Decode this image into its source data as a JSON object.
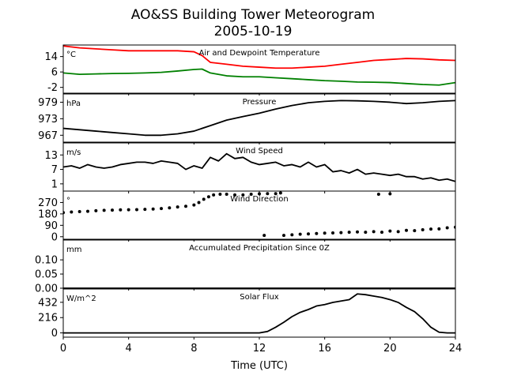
{
  "figure": {
    "title": "AO&SS Building Tower Meteorogram",
    "subtitle": "2005-10-19",
    "xlabel": "Time (UTC)"
  },
  "chart_data": [
    {
      "type": "line",
      "id": "temperature",
      "title": "Air and Dewpoint Temperature",
      "unit": "°C",
      "xlim": [
        0,
        24
      ],
      "ylim": [
        -5,
        20
      ],
      "yticks": [
        -2,
        6,
        14
      ],
      "series": [
        {
          "color": "#ff0000",
          "x": [
            0,
            1,
            2,
            3,
            4,
            5,
            6,
            7,
            8,
            8.5,
            9,
            10,
            11,
            12,
            13,
            14,
            15,
            16,
            17,
            18,
            19,
            20,
            21,
            22,
            23,
            24
          ],
          "y": [
            19.5,
            18.5,
            18,
            17.5,
            17,
            17,
            17,
            17,
            16.5,
            14.5,
            11,
            10,
            9,
            8.5,
            8,
            8,
            8.5,
            9,
            10,
            11,
            12,
            12.5,
            13,
            12.8,
            12.3,
            12
          ]
        },
        {
          "color": "#008000",
          "x": [
            0,
            1,
            2,
            3,
            4,
            5,
            6,
            7,
            8,
            8.5,
            9,
            10,
            11,
            12,
            13,
            14,
            15,
            16,
            17,
            18,
            19,
            20,
            21,
            22,
            23,
            24
          ],
          "y": [
            5.5,
            4.8,
            5,
            5.2,
            5.3,
            5.5,
            5.8,
            6.5,
            7.3,
            7.5,
            5.5,
            4,
            3.5,
            3.5,
            3,
            2.5,
            2,
            1.5,
            1.2,
            0.8,
            0.7,
            0.5,
            0,
            -0.5,
            -0.8,
            0.5
          ]
        }
      ]
    },
    {
      "type": "line",
      "id": "pressure",
      "title": "Pressure",
      "unit": "hPa",
      "xlim": [
        0,
        24
      ],
      "ylim": [
        964.5,
        982
      ],
      "yticks": [
        967,
        973,
        979
      ],
      "series": [
        {
          "color": "#000000",
          "x": [
            0,
            1,
            2,
            3,
            4,
            5,
            6,
            7,
            8,
            9,
            10,
            11,
            12,
            13,
            14,
            15,
            16,
            17,
            18,
            19,
            20,
            21,
            22,
            23,
            24
          ],
          "y": [
            969.5,
            969,
            968.5,
            968,
            967.5,
            967,
            967,
            967.5,
            968.5,
            970.5,
            972.5,
            973.8,
            975,
            976.5,
            977.8,
            978.8,
            979.3,
            979.6,
            979.5,
            979.3,
            979,
            978.5,
            978.8,
            979.3,
            979.6
          ]
        }
      ]
    },
    {
      "type": "line",
      "id": "wind_speed",
      "title": "Wind Speed",
      "unit": "m/s",
      "xlim": [
        0,
        24
      ],
      "ylim": [
        -2,
        18
      ],
      "yticks": [
        1,
        7,
        13
      ],
      "series": [
        {
          "color": "#000000",
          "x": [
            0,
            0.5,
            1,
            1.5,
            2,
            2.5,
            3,
            3.5,
            4,
            4.5,
            5,
            5.5,
            6,
            6.5,
            7,
            7.5,
            8,
            8.5,
            9,
            9.5,
            10,
            10.5,
            11,
            11.5,
            12,
            12.5,
            13,
            13.5,
            14,
            14.5,
            15,
            15.5,
            16,
            16.5,
            17,
            17.5,
            18,
            18.5,
            19,
            19.5,
            20,
            20.5,
            21,
            21.5,
            22,
            22.5,
            23,
            23.5,
            24
          ],
          "y": [
            8,
            8.5,
            7.5,
            9,
            8,
            7.5,
            8,
            9,
            9.5,
            10,
            10,
            9.5,
            10.5,
            10,
            9.5,
            7,
            8.5,
            7.5,
            12,
            10.5,
            13.5,
            11.5,
            12,
            10,
            9,
            9.5,
            10,
            8.5,
            9,
            8,
            10,
            8,
            9,
            6,
            6.5,
            5.5,
            7,
            5,
            5.5,
            5,
            4.5,
            5,
            4,
            4,
            3,
            3.5,
            2.5,
            3,
            2
          ]
        }
      ]
    },
    {
      "type": "scatter",
      "id": "wind_direction",
      "title": "Wind Direction",
      "unit": "°",
      "xlim": [
        0,
        24
      ],
      "ylim": [
        -20,
        360
      ],
      "yticks": [
        0,
        90,
        180,
        270
      ],
      "series": [
        {
          "color": "#000000",
          "x": [
            0,
            0.5,
            1,
            1.5,
            2,
            2.5,
            3,
            3.5,
            4,
            4.5,
            5,
            5.5,
            6,
            6.5,
            7,
            7.5,
            8,
            8.3,
            8.6,
            8.9,
            9.2,
            9.6,
            10,
            10.5,
            11,
            11.5,
            12,
            12.5,
            13,
            13.3,
            13.5,
            14,
            14.5,
            15,
            15.5,
            16,
            16.5,
            17,
            17.5,
            18,
            18.5,
            19,
            19.5,
            20,
            20.5,
            21,
            21.5,
            22,
            22.5,
            23,
            23.5,
            24,
            12.3,
            19.3,
            20
          ],
          "y": [
            190,
            195,
            198,
            200,
            205,
            208,
            210,
            212,
            213,
            214,
            216,
            218,
            222,
            228,
            235,
            240,
            250,
            270,
            295,
            315,
            330,
            335,
            335,
            330,
            330,
            335,
            338,
            340,
            340,
            345,
            10,
            15,
            20,
            22,
            25,
            28,
            30,
            32,
            35,
            38,
            35,
            40,
            35,
            45,
            40,
            50,
            48,
            55,
            60,
            62,
            70,
            75,
            10,
            335,
            338
          ]
        }
      ]
    },
    {
      "type": "line",
      "id": "precipitation",
      "title": "Accumulated Precipitation Since 0Z",
      "unit": "mm",
      "xlim": [
        0,
        24
      ],
      "ylim": [
        0,
        0.17
      ],
      "yticks": [
        0.0,
        0.05,
        0.1
      ],
      "ytick_labels": [
        "0.00",
        "0.05",
        "0.10"
      ],
      "series": [
        {
          "color": "#000000",
          "x": [
            0,
            24
          ],
          "y": [
            0,
            0
          ]
        }
      ]
    },
    {
      "type": "line",
      "id": "solar_flux",
      "title": "Solar Flux",
      "unit": "W/m^2",
      "xlim": [
        0,
        24
      ],
      "ylim": [
        -60,
        620
      ],
      "yticks": [
        0,
        216,
        432
      ],
      "series": [
        {
          "color": "#000000",
          "x": [
            0,
            1,
            2,
            3,
            4,
            5,
            6,
            7,
            8,
            9,
            10,
            11,
            12,
            12.5,
            13,
            13.5,
            14,
            14.5,
            15,
            15.5,
            16,
            16.5,
            17,
            17.5,
            18,
            18.5,
            19,
            19.5,
            20,
            20.5,
            21,
            21.5,
            22,
            22.5,
            23,
            23.5,
            24
          ],
          "y": [
            0,
            0,
            0,
            0,
            0,
            0,
            0,
            0,
            0,
            0,
            0,
            0,
            0,
            20,
            80,
            150,
            230,
            290,
            330,
            380,
            400,
            430,
            450,
            470,
            550,
            540,
            520,
            500,
            470,
            430,
            360,
            300,
            200,
            80,
            10,
            0,
            0
          ]
        }
      ]
    }
  ],
  "xaxis": {
    "ticks": [
      0,
      4,
      8,
      12,
      16,
      20,
      24
    ]
  }
}
